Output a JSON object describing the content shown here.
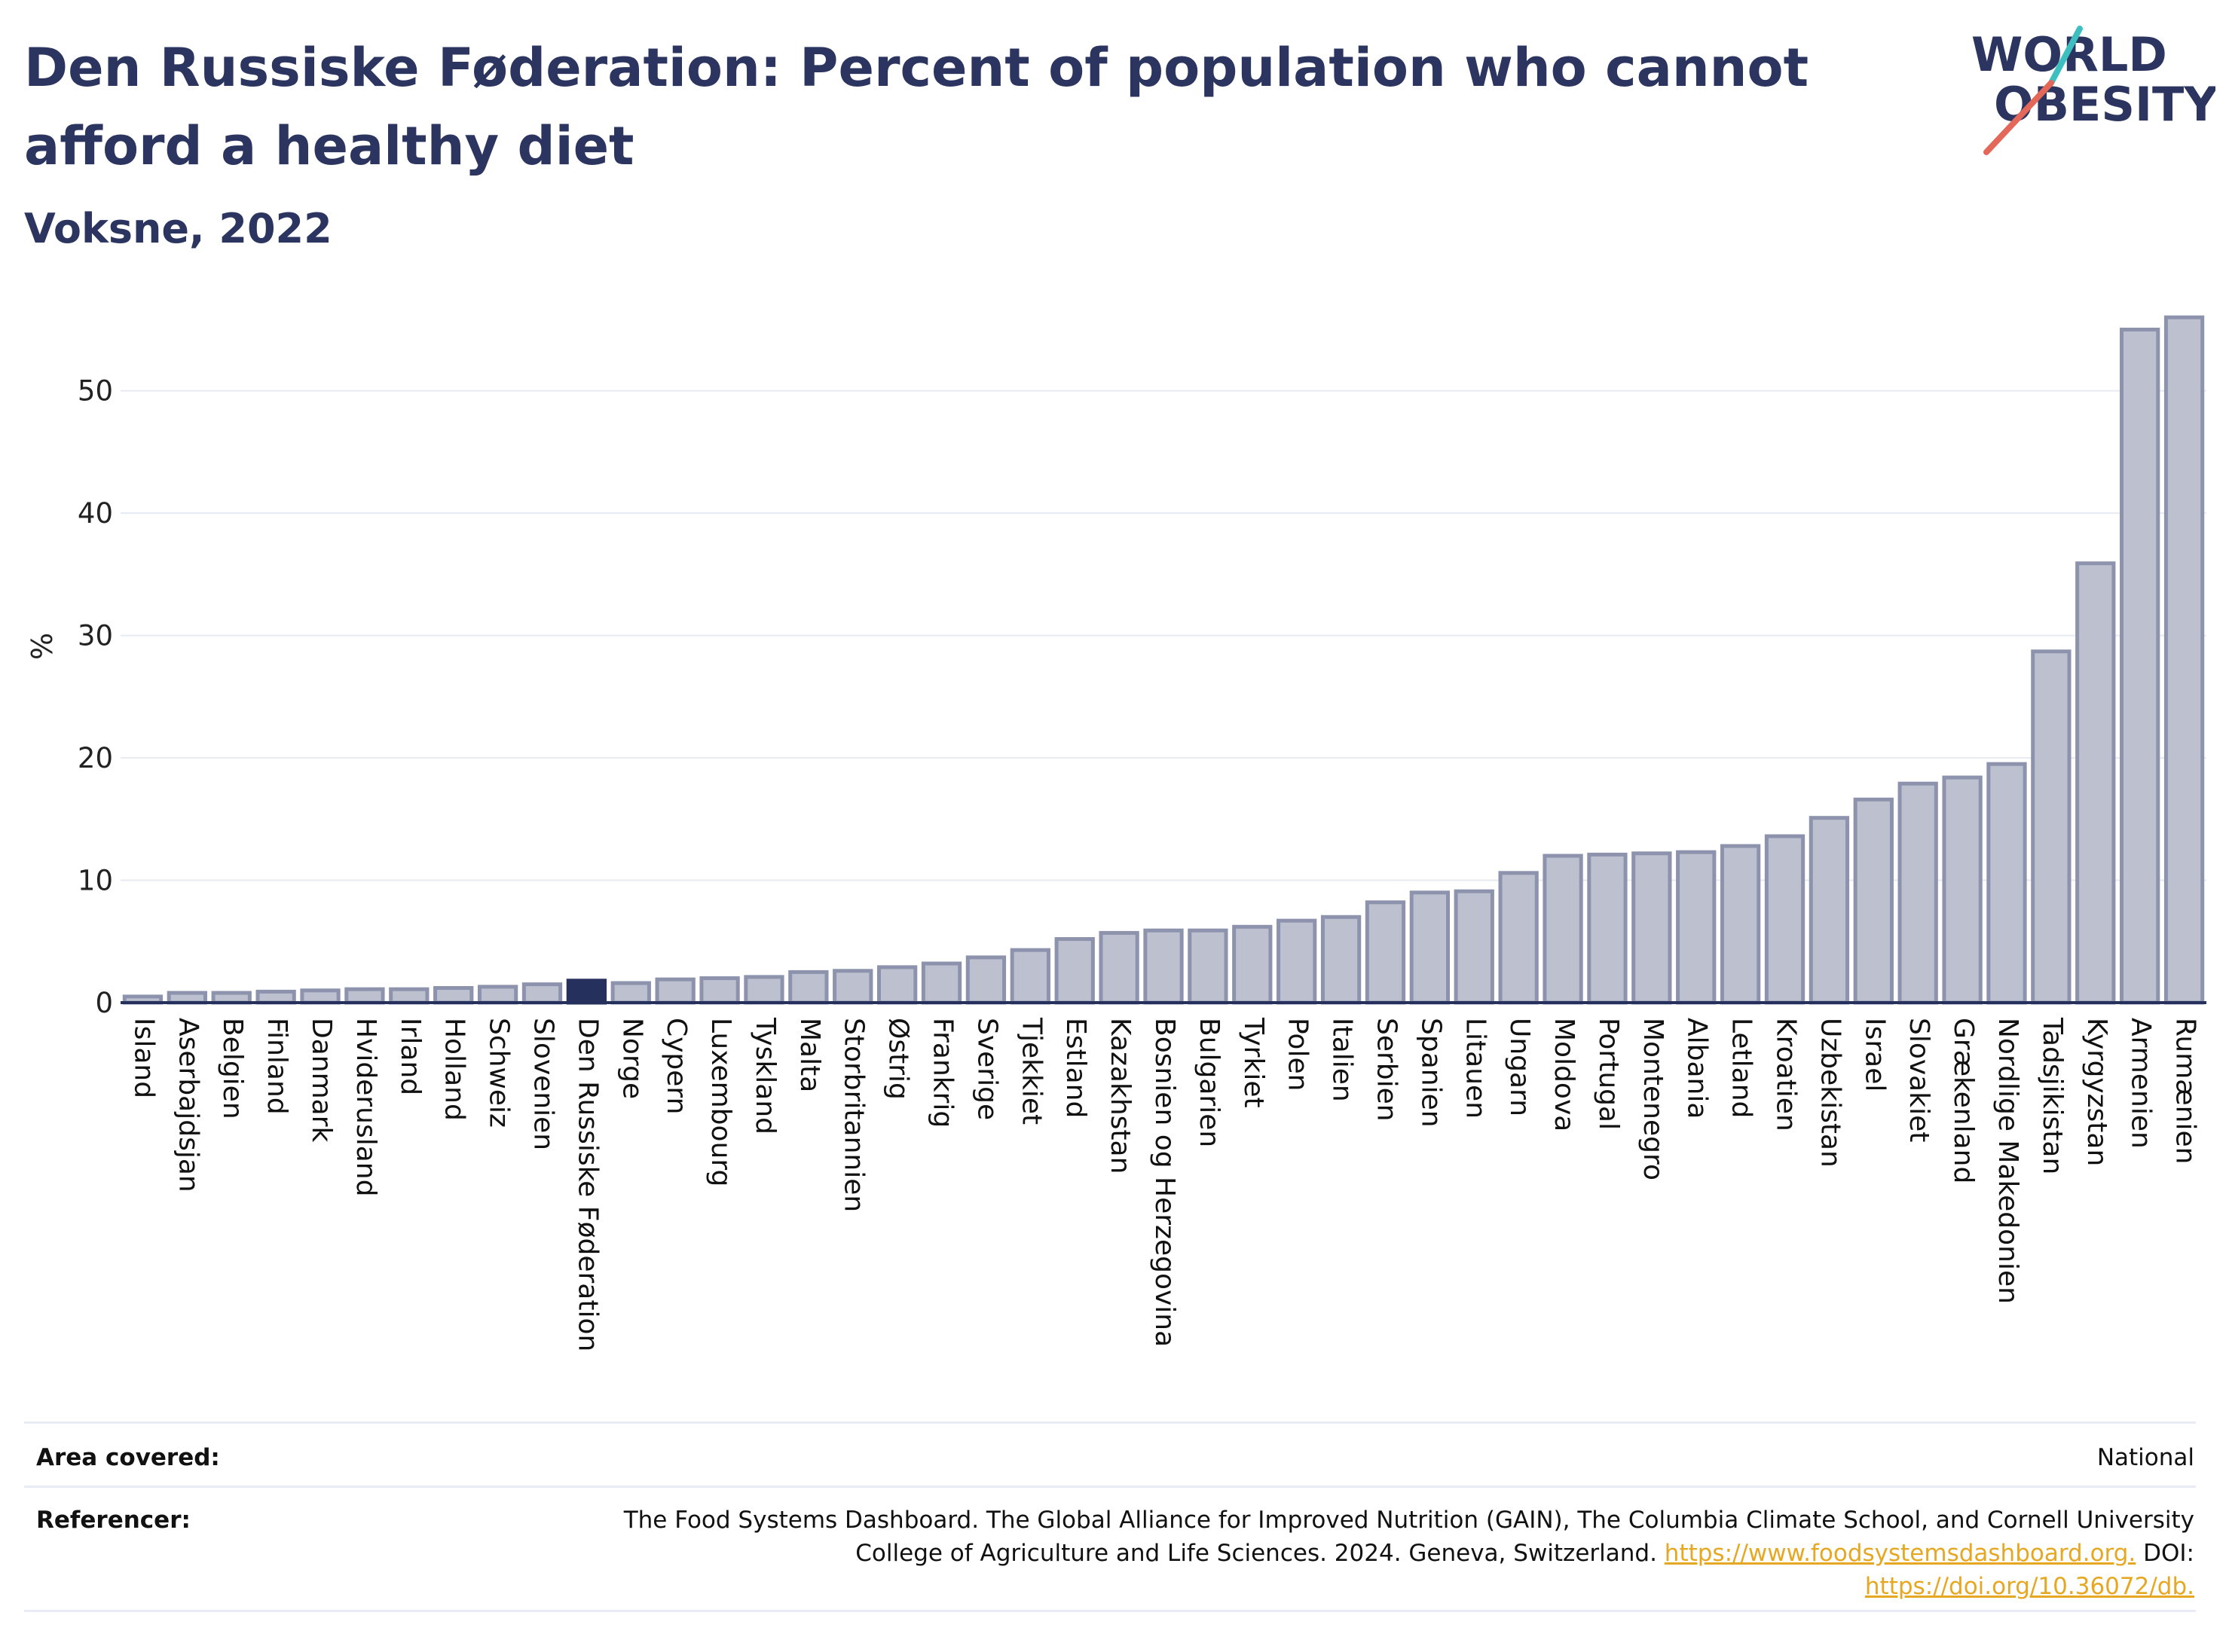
{
  "title": "Den Russiske Føderation: Percent of population who cannot afford a healthy diet",
  "subtitle": "Voksne, 2022",
  "logo": {
    "line1": "WORLD",
    "line2": "OBESITY"
  },
  "colors": {
    "bar": "#bcc0cf",
    "bar_stroke": "#8d93ad",
    "highlight": "#26305c",
    "text": "#2b3560"
  },
  "chart_data": {
    "type": "bar",
    "ylabel": "%",
    "ylim": [
      0,
      57
    ],
    "yticks": [
      0,
      10,
      20,
      30,
      40,
      50
    ],
    "grid": true,
    "highlight": "Den Russiske Føderation",
    "categories": [
      "Island",
      "Aserbajdsjan",
      "Belgien",
      "Finland",
      "Danmark",
      "Hviderusland",
      "Irland",
      "Holland",
      "Schweiz",
      "Slovenien",
      "Den Russiske Føderation",
      "Norge",
      "Cypern",
      "Luxembourg",
      "Tyskland",
      "Malta",
      "Storbritannien",
      "Østrig",
      "Frankrig",
      "Sverige",
      "Tjekkiet",
      "Estland",
      "Kazakhstan",
      "Bosnien og Herzegovina",
      "Bulgarien",
      "Tyrkiet",
      "Polen",
      "Italien",
      "Serbien",
      "Spanien",
      "Litauen",
      "Ungarn",
      "Moldova",
      "Portugal",
      "Montenegro",
      "Albania",
      "Letland",
      "Kroatien",
      "Uzbekistan",
      "Israel",
      "Slovakiet",
      "Grækenland",
      "Nordlige Makedonien",
      "Tadsjikistan",
      "Kyrgyzstan",
      "Armenien",
      "Rumænien"
    ],
    "values": [
      0.5,
      0.8,
      0.8,
      0.9,
      1.0,
      1.1,
      1.1,
      1.2,
      1.3,
      1.5,
      1.8,
      1.6,
      1.9,
      2.0,
      2.1,
      2.5,
      2.6,
      2.9,
      3.2,
      3.7,
      4.3,
      5.2,
      5.7,
      5.9,
      5.9,
      6.2,
      6.7,
      7.0,
      8.2,
      9.0,
      9.1,
      10.6,
      12.0,
      12.1,
      12.2,
      12.3,
      12.8,
      13.6,
      15.1,
      16.6,
      17.9,
      18.4,
      19.5,
      28.7,
      35.9,
      55.0,
      56.0
    ]
  },
  "info": {
    "area_label": "Area covered:",
    "area_value": "National",
    "ref_label": "Referencer:",
    "ref_text": "The Food Systems Dashboard. The Global Alliance for Improved Nutrition (GAIN), The Columbia Climate School, and Cornell University College of Agriculture and Life Sciences. 2024. Geneva, Switzerland. ",
    "ref_link1": "https://www.foodsystemsdashboard.org.",
    "ref_mid": " DOI: ",
    "ref_link2": "https://doi.org/10.36072/db."
  }
}
